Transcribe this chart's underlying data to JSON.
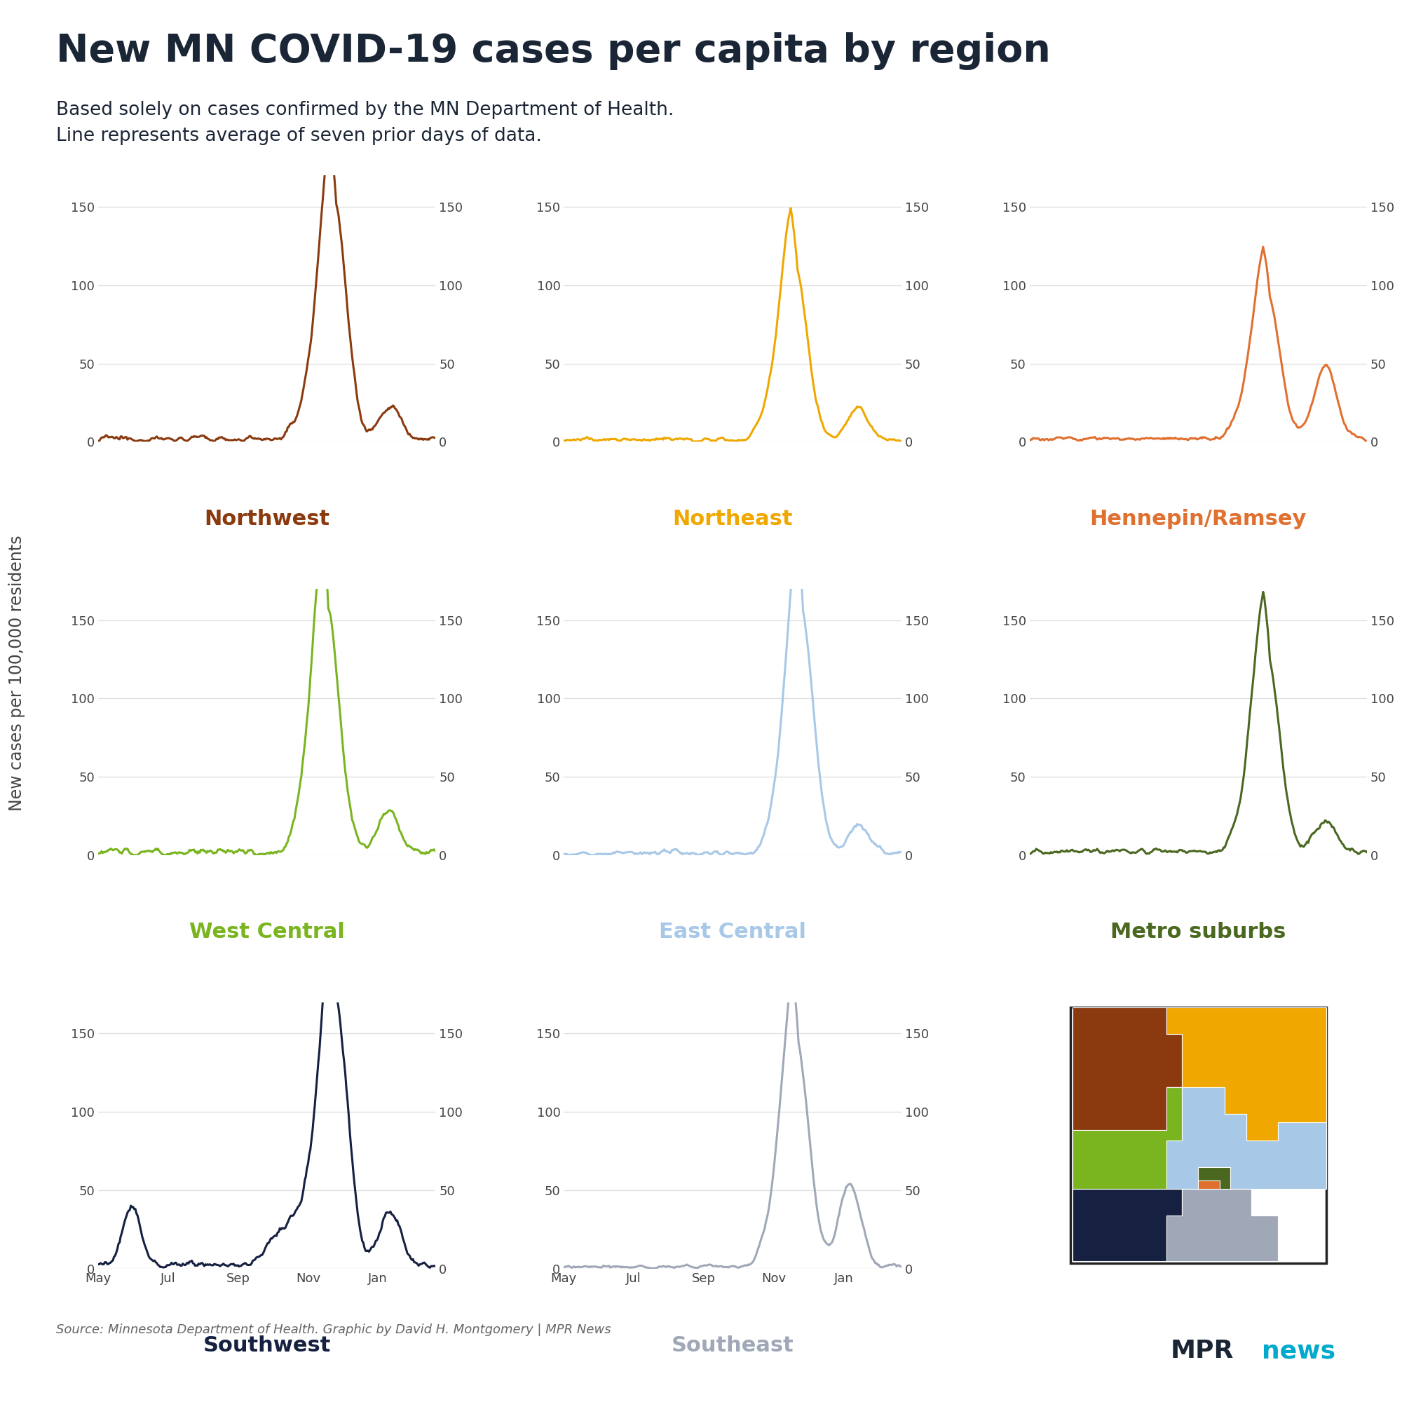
{
  "title": "New MN COVID-19 cases per capita by region",
  "subtitle_line1": "Based solely on cases confirmed by the MN Department of Health.",
  "subtitle_line2": "Line represents average of seven prior days of data.",
  "ylabel": "New cases per 100,000 residents",
  "source": "Source: Minnesota Department of Health. Graphic by David H. Montgomery | MPR News",
  "regions": [
    {
      "name": "Northwest",
      "color": "#8B3A0F",
      "row": 0,
      "col": 0
    },
    {
      "name": "Northeast",
      "color": "#F0A800",
      "row": 0,
      "col": 1
    },
    {
      "name": "Hennepin/Ramsey",
      "color": "#E07030",
      "row": 0,
      "col": 2
    },
    {
      "name": "West Central",
      "color": "#7AB520",
      "row": 1,
      "col": 0
    },
    {
      "name": "East Central",
      "color": "#A8C8E8",
      "row": 1,
      "col": 1
    },
    {
      "name": "Metro suburbs",
      "color": "#4A6820",
      "row": 1,
      "col": 2
    },
    {
      "name": "Southwest",
      "color": "#162040",
      "row": 2,
      "col": 0
    },
    {
      "name": "Southeast",
      "color": "#A0A8B8",
      "row": 2,
      "col": 1
    }
  ],
  "map_colors": {
    "Northwest": "#8B3A0F",
    "Northeast": "#F0A800",
    "Hennepin/Ramsey": "#E07030",
    "West Central": "#7AB520",
    "East Central": "#A8C8E8",
    "Metro suburbs": "#4A6820",
    "Southwest": "#162040",
    "Southeast": "#A0A8B8"
  },
  "ylim": [
    0,
    170
  ],
  "yticks": [
    0,
    50,
    100,
    150
  ],
  "background_color": "#FFFFFF",
  "grid_color": "#DDDDDD",
  "title_color": "#1A2535",
  "subtitle_color": "#1A2535",
  "axis_label_color": "#444444",
  "tick_label_color": "#444444"
}
